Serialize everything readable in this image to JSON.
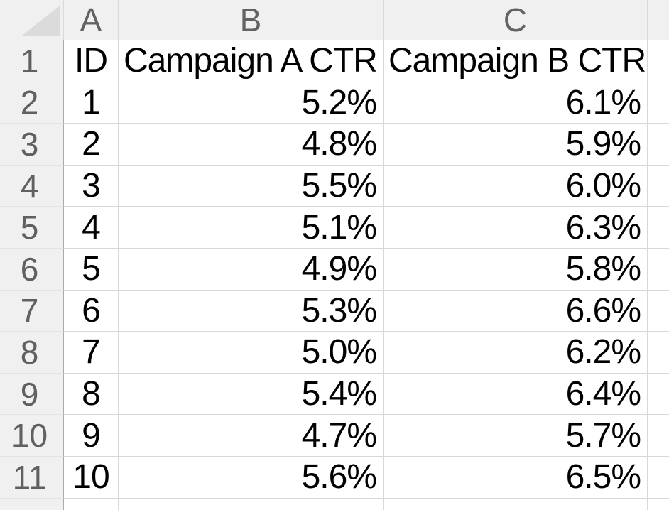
{
  "colors": {
    "header_bg": "#f0f0f0",
    "header_text": "#636363",
    "grid_line": "#d8d8d8",
    "strong_border": "#a5a5a5",
    "triangle": "#dbdbdb",
    "cell_text": "#000000"
  },
  "sheet": {
    "column_headers": [
      {
        "label": "A"
      },
      {
        "label": "B"
      },
      {
        "label": "C"
      },
      {
        "label": ""
      }
    ],
    "rows": [
      {
        "number": "1",
        "cells": [
          "ID",
          "Campaign A CTR",
          "Campaign B CTR"
        ]
      },
      {
        "number": "2",
        "cells": [
          "1",
          "5.2%",
          "6.1%"
        ]
      },
      {
        "number": "3",
        "cells": [
          "2",
          "4.8%",
          "5.9%"
        ]
      },
      {
        "number": "4",
        "cells": [
          "3",
          "5.5%",
          "6.0%"
        ]
      },
      {
        "number": "5",
        "cells": [
          "4",
          "5.1%",
          "6.3%"
        ]
      },
      {
        "number": "6",
        "cells": [
          "5",
          "4.9%",
          "5.8%"
        ]
      },
      {
        "number": "7",
        "cells": [
          "6",
          "5.3%",
          "6.6%"
        ]
      },
      {
        "number": "8",
        "cells": [
          "7",
          "5.0%",
          "6.2%"
        ]
      },
      {
        "number": "9",
        "cells": [
          "8",
          "5.4%",
          "6.4%"
        ]
      },
      {
        "number": "10",
        "cells": [
          "9",
          "4.7%",
          "5.7%"
        ]
      },
      {
        "number": "11",
        "cells": [
          "10",
          "5.6%",
          "6.5%"
        ]
      }
    ],
    "partial_row": {
      "number": ""
    }
  }
}
